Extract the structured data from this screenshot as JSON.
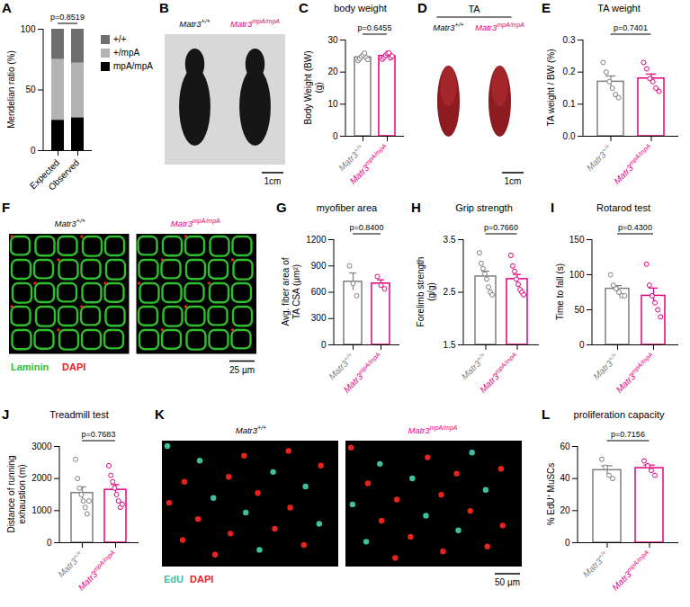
{
  "chart_data": [
    {
      "panel": "A",
      "type": "bar",
      "stacked": true,
      "categories": [
        "Expected",
        "Observed"
      ],
      "ylabel": "Mendelian ratio (%)",
      "ylim": [
        0,
        100
      ],
      "yticks": [
        0,
        50,
        100
      ],
      "annotation": "p=0.8519",
      "legend": "right",
      "series": [
        {
          "name": "+/+",
          "color": "#6e6e6e",
          "values": [
            25,
            28
          ]
        },
        {
          "name": "+/mpA",
          "color": "#b3b3b3",
          "values": [
            50,
            45
          ]
        },
        {
          "name": "mpA/mpA",
          "color": "#000000",
          "values": [
            25,
            27
          ]
        }
      ]
    },
    {
      "panel": "C",
      "type": "bar",
      "title": "body weight",
      "categories": [
        "Matr3+/+",
        "Matr3mpA/mpA"
      ],
      "colors": [
        "#7f7f7f",
        "#e4007f"
      ],
      "values": [
        24.6,
        25.0
      ],
      "errors": [
        0.35,
        0.3
      ],
      "points": [
        [
          23.6,
          24.2,
          24.8,
          25.3,
          25.9,
          24.5,
          23.9
        ],
        [
          24.0,
          24.6,
          25.2,
          25.8,
          26.0,
          24.4,
          25.0
        ]
      ],
      "ylabel": "Body Weight (BW) (g)",
      "ylim": [
        0,
        30
      ],
      "yticks": [
        0,
        10,
        20,
        30
      ],
      "annotation": "p=0.6455"
    },
    {
      "panel": "E",
      "type": "bar",
      "title": "TA weight",
      "categories": [
        "Matr3+/+",
        "Matr3mpA/mpA"
      ],
      "colors": [
        "#7f7f7f",
        "#e4007f"
      ],
      "values": [
        0.17,
        0.18
      ],
      "errors": [
        0.018,
        0.014
      ],
      "points": [
        [
          0.23,
          0.2,
          0.17,
          0.15,
          0.13,
          0.12
        ],
        [
          0.23,
          0.21,
          0.18,
          0.17,
          0.15,
          0.14
        ]
      ],
      "ylabel": "TA weight / BW (%)",
      "ylim": [
        0,
        0.3
      ],
      "yticks": [
        {
          "value": 0,
          "label": "0.0"
        },
        0.1,
        0.2,
        0.3
      ],
      "annotation": "p=0.7401"
    },
    {
      "panel": "G",
      "type": "bar",
      "title": "myofiber area",
      "categories": [
        "Matr3+/+",
        "Matr3mpA/mpA"
      ],
      "colors": [
        "#7f7f7f",
        "#e4007f"
      ],
      "values": [
        720,
        700
      ],
      "errors": [
        100,
        42
      ],
      "points": [
        [
          900,
          700,
          560
        ],
        [
          780,
          680,
          640
        ]
      ],
      "ylabel": "Avg. fiber area of TA CSA (µm²)",
      "ylim": [
        0,
        1200
      ],
      "yticks": [
        0,
        300,
        600,
        900,
        1200
      ],
      "annotation": "p=0.8400"
    },
    {
      "panel": "H",
      "type": "bar",
      "title": "Grip strength",
      "categories": [
        "Matr3+/+",
        "Matr3mpA/mpA"
      ],
      "colors": [
        "#7f7f7f",
        "#e4007f"
      ],
      "values": [
        2.8,
        2.75
      ],
      "errors": [
        0.1,
        0.09
      ],
      "points": [
        [
          3.25,
          3.05,
          2.95,
          2.85,
          2.75,
          2.6,
          2.5,
          2.45
        ],
        [
          3.2,
          3.0,
          2.9,
          2.75,
          2.65,
          2.55,
          2.5,
          2.45
        ]
      ],
      "ylabel": "Forelimb strength (g/g)",
      "ylim": [
        1.5,
        3.5
      ],
      "yticks": [
        1.5,
        2.5,
        3.5
      ],
      "annotation": "p=0.7660"
    },
    {
      "panel": "I",
      "type": "bar",
      "title": "Rotarod test",
      "categories": [
        "Matr3+/+",
        "Matr3mpA/mpA"
      ],
      "colors": [
        "#7f7f7f",
        "#e4007f"
      ],
      "values": [
        80,
        70
      ],
      "errors": [
        4.5,
        11
      ],
      "points": [
        [
          100,
          85,
          80,
          75,
          70,
          70
        ],
        [
          115,
          85,
          70,
          60,
          50,
          40
        ]
      ],
      "ylabel": "Time to fall (s)",
      "ylim": [
        0,
        150
      ],
      "yticks": [
        0,
        50,
        100,
        150
      ],
      "annotation": "p=0.4300"
    },
    {
      "panel": "J",
      "type": "bar",
      "title": "Treadmill test",
      "categories": [
        "Matr3+/+",
        "Matr3mpA/mpA"
      ],
      "colors": [
        "#7f7f7f",
        "#e4007f"
      ],
      "values": [
        1550,
        1650
      ],
      "errors": [
        190,
        160
      ],
      "points": [
        [
          2600,
          2000,
          1700,
          1500,
          1300,
          1100,
          900,
          1300
        ],
        [
          2400,
          2100,
          1900,
          1700,
          1500,
          1300,
          1100,
          1200
        ]
      ],
      "ylabel": "Distance of running exhaustion (m)",
      "ylim": [
        0,
        3000
      ],
      "yticks": [
        0,
        1000,
        2000,
        3000
      ],
      "annotation": "p=0.7683"
    },
    {
      "panel": "L",
      "type": "bar",
      "title": "proliferation capacity",
      "categories": [
        "Matr3+/+",
        "Matr3mpA/mpA"
      ],
      "colors": [
        "#7f7f7f",
        "#e4007f"
      ],
      "values": [
        45.25,
        46.5
      ],
      "errors": [
        2.7,
        1.9
      ],
      "points": [
        [
          52,
          47,
          42,
          40
        ],
        [
          51,
          48,
          45,
          42
        ]
      ],
      "ylabel": "% EdU⁺ MuSCs",
      "ylim": [
        0,
        60
      ],
      "yticks": [
        0,
        20,
        40,
        60
      ],
      "annotation": "p=0.7156"
    }
  ],
  "images": [
    {
      "panel": "B",
      "type": "photo",
      "labels": [
        "Matr3+/+",
        "Matr3mpA/mpA"
      ],
      "colors": [
        "#000000",
        "#e4007f"
      ],
      "scale_bar": "1cm"
    },
    {
      "panel": "D",
      "type": "tissue",
      "title": "TA",
      "labels": [
        "Matr3+/+",
        "Matr3mpA/mpA"
      ],
      "colors": [
        "#000000",
        "#e4007f"
      ],
      "scale_bar": "1cm"
    },
    {
      "panel": "F",
      "type": "micrograph",
      "labels": [
        "Matr3+/+",
        "Matr3mpA/mpA"
      ],
      "colors": [
        "#000000",
        "#e4007f"
      ],
      "channels": [
        {
          "name": "Laminin",
          "color": "#2fbf2f"
        },
        {
          "name": "DAPI",
          "color": "#e8231e"
        }
      ],
      "scale_bar": "25 µm"
    },
    {
      "panel": "K",
      "type": "micrograph",
      "labels": [
        "Matr3+/+",
        "Matr3mpA/mpA"
      ],
      "colors": [
        "#000000",
        "#e4007f"
      ],
      "channels": [
        {
          "name": "EdU",
          "color": "#3fbf9f"
        },
        {
          "name": "DAPI",
          "color": "#e8231e"
        }
      ],
      "scale_bar": "50 µm"
    }
  ]
}
